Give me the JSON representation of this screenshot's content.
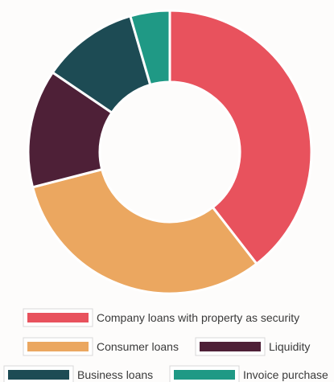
{
  "chart_data": {
    "type": "pie",
    "variant": "donut",
    "title": "",
    "series": [
      {
        "name": "",
        "categories": [
          "Company loans with property as security",
          "Consumer loans",
          "Liquidity",
          "Business loans",
          "Invoice purchase"
        ],
        "values": [
          39.5,
          31.5,
          13.5,
          11,
          4.5
        ]
      }
    ],
    "colors": [
      "#e8525d",
      "#eba760",
      "#4e2037",
      "#1d4b54",
      "#1f9985"
    ],
    "legend": "bottom",
    "start_angle": "12 o'clock, clockwise"
  }
}
